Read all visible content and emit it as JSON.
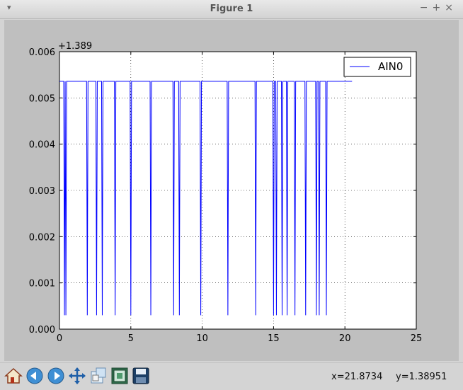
{
  "window": {
    "title": "Figure 1",
    "menu_glyph": "▾",
    "controls": [
      "−",
      "+",
      "×"
    ]
  },
  "toolbar": {
    "buttons": [
      {
        "name": "home-icon"
      },
      {
        "name": "back-arrow-icon"
      },
      {
        "name": "forward-arrow-icon"
      },
      {
        "name": "pan-move-icon"
      },
      {
        "name": "zoom-to-rect-icon"
      },
      {
        "name": "subplots-config-icon"
      },
      {
        "name": "save-floppy-icon"
      }
    ],
    "x_readout": "x=21.8734",
    "y_readout": "y=1.38951"
  },
  "chart_data": {
    "type": "line",
    "offset_label": "+1.389",
    "xlim": [
      0,
      25
    ],
    "ylim": [
      0.0,
      0.006
    ],
    "x_ticks": [
      "0",
      "5",
      "10",
      "15",
      "20",
      "25"
    ],
    "y_ticks": [
      "0.000",
      "0.001",
      "0.002",
      "0.003",
      "0.004",
      "0.005",
      "0.006"
    ],
    "grid": true,
    "legend_position": "top-right",
    "series": [
      {
        "name": "AIN0",
        "color": "#0000ff",
        "high": 0.00536,
        "low": 0.0003,
        "x_end": 20.5,
        "dips": [
          [
            0.3,
            0.4
          ],
          [
            0.4,
            0.5
          ],
          [
            1.9,
            2.0
          ],
          [
            2.55,
            2.65
          ],
          [
            2.95,
            3.05
          ],
          [
            3.85,
            3.95
          ],
          [
            4.95,
            5.05
          ],
          [
            6.35,
            6.45
          ],
          [
            7.95,
            8.05
          ],
          [
            8.35,
            8.45
          ],
          [
            9.85,
            9.95
          ],
          [
            11.75,
            11.85
          ],
          [
            13.7,
            13.8
          ],
          [
            14.95,
            15.05
          ],
          [
            15.15,
            15.25
          ],
          [
            15.55,
            15.65
          ],
          [
            15.9,
            16.0
          ],
          [
            16.45,
            16.55
          ],
          [
            17.2,
            17.3
          ],
          [
            17.95,
            18.05
          ],
          [
            18.15,
            18.25
          ],
          [
            18.65,
            18.75
          ]
        ]
      }
    ]
  }
}
